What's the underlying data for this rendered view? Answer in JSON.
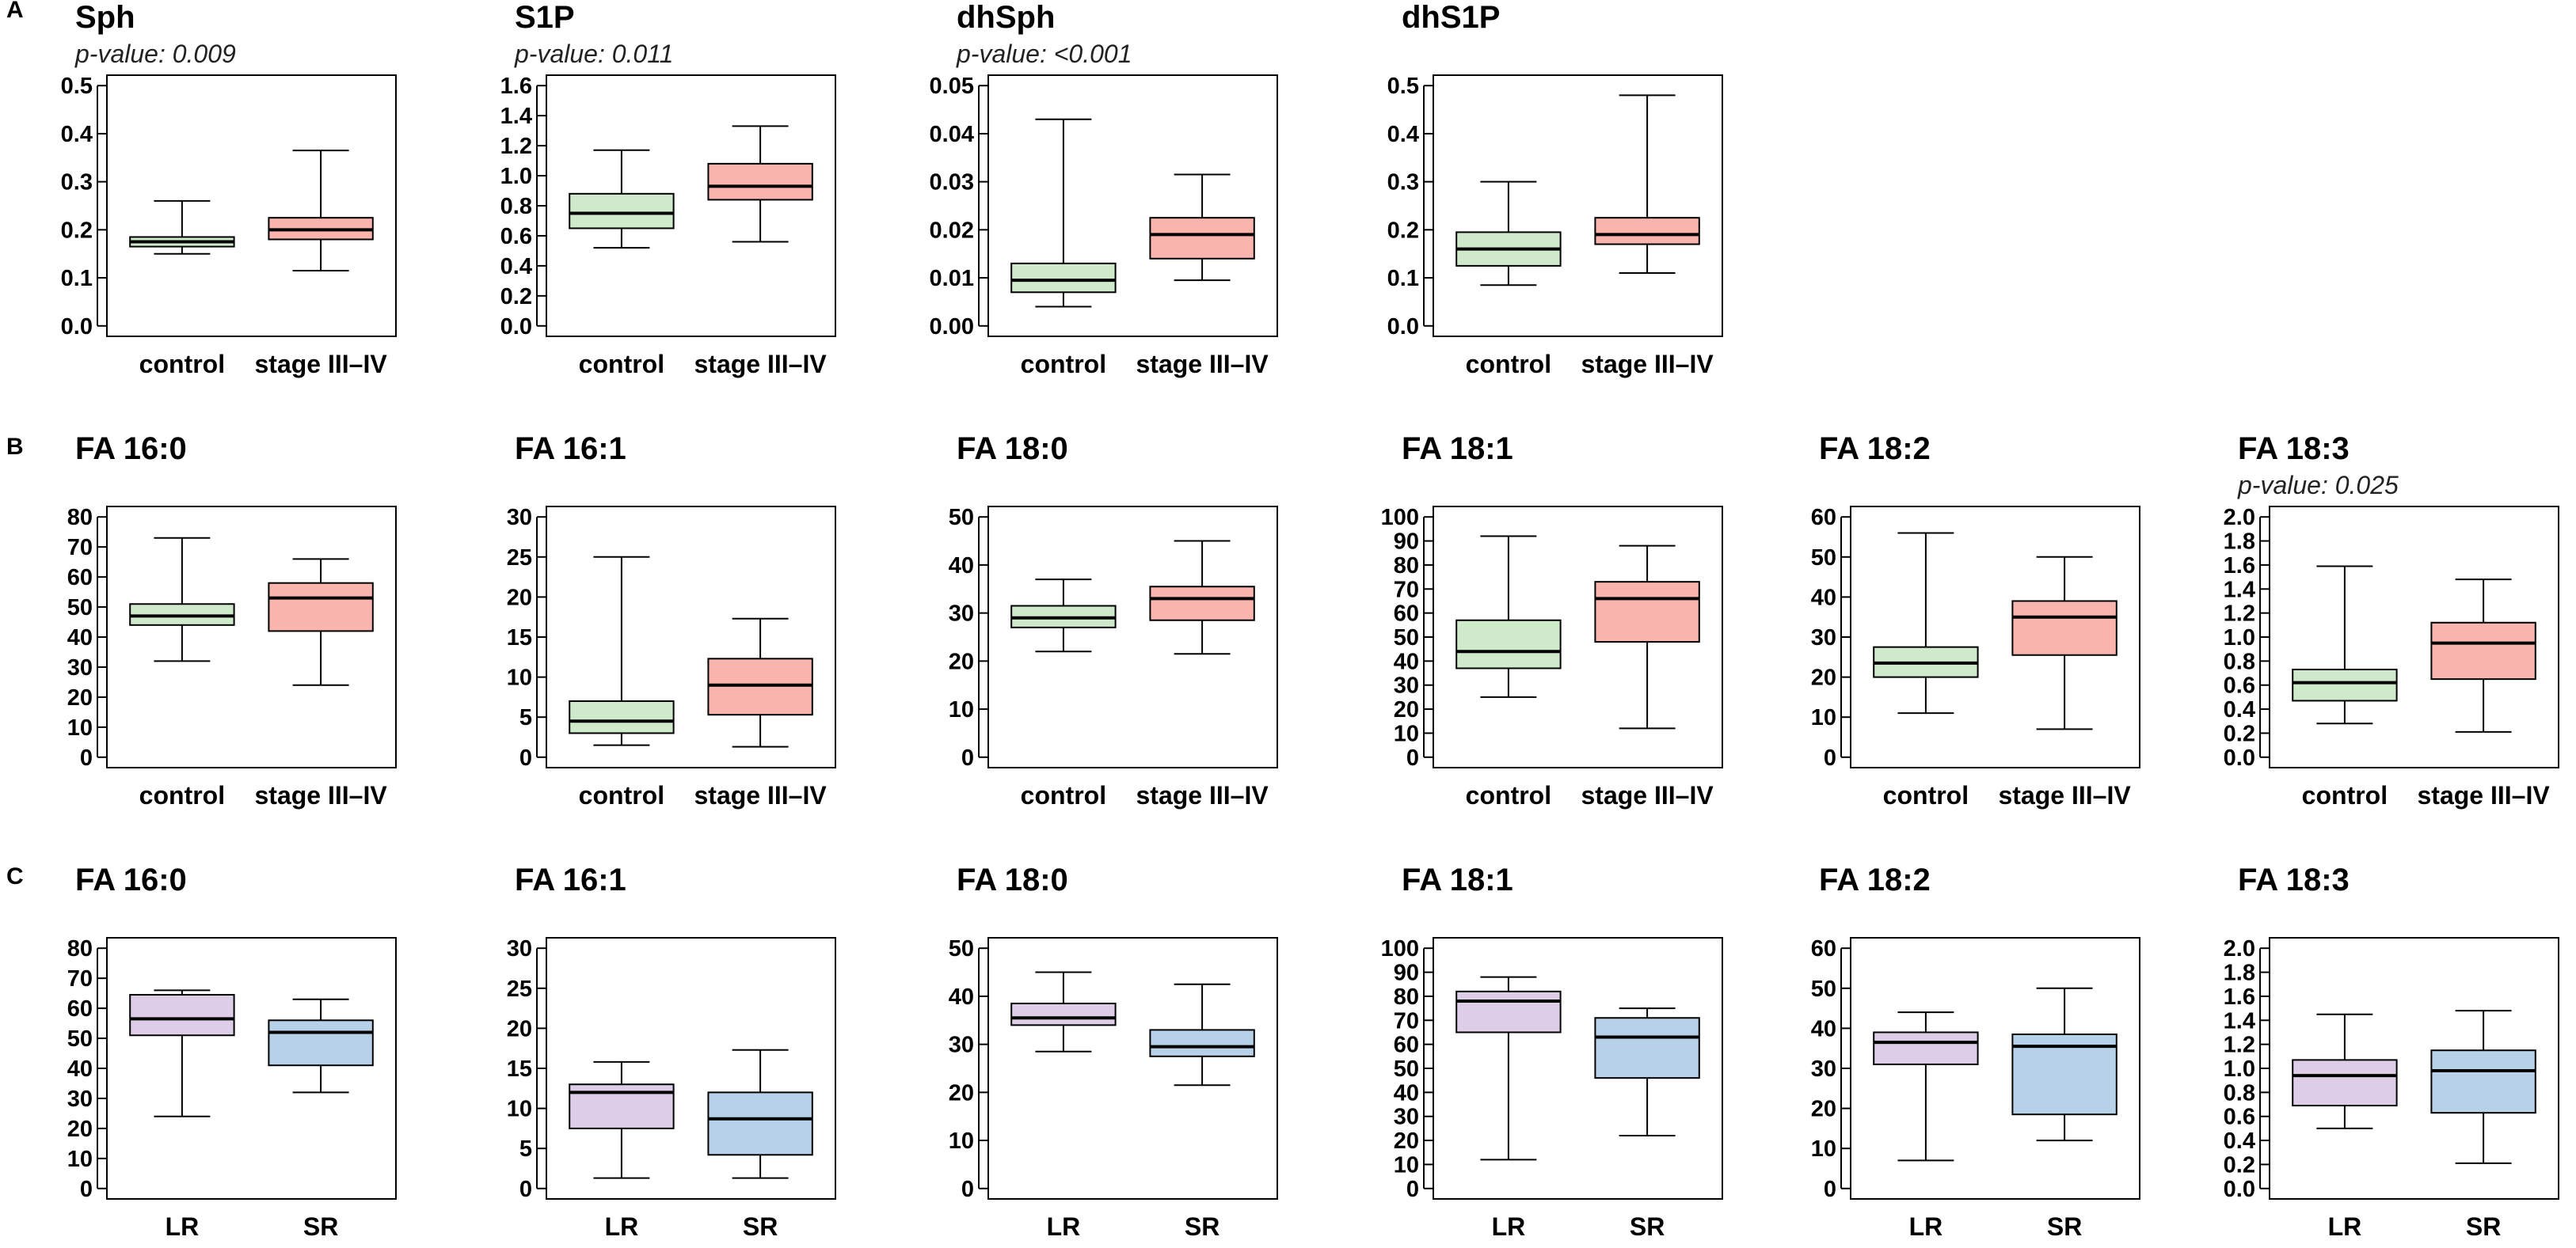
{
  "panel_labels": [
    "A",
    "B",
    "C"
  ],
  "colors": {
    "control": "#cfeacb",
    "stage": "#f9b4ad",
    "lr": "#ddcde7",
    "sr": "#b7d1e8",
    "stroke": "#000000"
  },
  "chart_data": [
    {
      "panel": "A",
      "type": "box",
      "title": "Sph",
      "subtitle": "p-value: 0.009",
      "categories": [
        "control",
        "stage III–IV"
      ],
      "yticks": [
        "0.0",
        "0.1",
        "0.2",
        "0.3",
        "0.4",
        "0.5"
      ],
      "ylim": [
        0,
        0.5
      ],
      "boxes": [
        {
          "min": 0.15,
          "q1": 0.165,
          "median": 0.175,
          "q3": 0.185,
          "max": 0.26,
          "color": "control"
        },
        {
          "min": 0.115,
          "q1": 0.18,
          "median": 0.2,
          "q3": 0.225,
          "max": 0.365,
          "color": "stage"
        }
      ]
    },
    {
      "panel": "A",
      "type": "box",
      "title": "S1P",
      "subtitle": "p-value: 0.011",
      "categories": [
        "control",
        "stage III–IV"
      ],
      "yticks": [
        "0.0",
        "0.2",
        "0.4",
        "0.6",
        "0.8",
        "1.0",
        "1.2",
        "1.4",
        "1.6"
      ],
      "ylim": [
        0,
        1.6
      ],
      "boxes": [
        {
          "min": 0.52,
          "q1": 0.65,
          "median": 0.75,
          "q3": 0.88,
          "max": 1.17,
          "color": "control"
        },
        {
          "min": 0.56,
          "q1": 0.84,
          "median": 0.93,
          "q3": 1.08,
          "max": 1.33,
          "color": "stage"
        }
      ]
    },
    {
      "panel": "A",
      "type": "box",
      "title": "dhSph",
      "subtitle": "p-value: <0.001",
      "categories": [
        "control",
        "stage III–IV"
      ],
      "yticks": [
        "0.00",
        "0.01",
        "0.02",
        "0.03",
        "0.04",
        "0.05"
      ],
      "ylim": [
        0,
        0.05
      ],
      "boxes": [
        {
          "min": 0.004,
          "q1": 0.007,
          "median": 0.0095,
          "q3": 0.013,
          "max": 0.043,
          "color": "control"
        },
        {
          "min": 0.0095,
          "q1": 0.014,
          "median": 0.019,
          "q3": 0.0225,
          "max": 0.0315,
          "color": "stage"
        }
      ]
    },
    {
      "panel": "A",
      "type": "box",
      "title": "dhS1P",
      "subtitle": "",
      "categories": [
        "control",
        "stage III–IV"
      ],
      "yticks": [
        "0.0",
        "0.1",
        "0.2",
        "0.3",
        "0.4",
        "0.5"
      ],
      "ylim": [
        0,
        0.5
      ],
      "boxes": [
        {
          "min": 0.085,
          "q1": 0.125,
          "median": 0.16,
          "q3": 0.195,
          "max": 0.3,
          "color": "control"
        },
        {
          "min": 0.11,
          "q1": 0.17,
          "median": 0.19,
          "q3": 0.225,
          "max": 0.48,
          "color": "stage"
        }
      ]
    },
    {
      "panel": "B",
      "type": "box",
      "title": "FA 16:0",
      "subtitle": "",
      "categories": [
        "control",
        "stage III–IV"
      ],
      "yticks": [
        "0",
        "10",
        "20",
        "30",
        "40",
        "50",
        "60",
        "70",
        "80"
      ],
      "ylim": [
        0,
        80
      ],
      "boxes": [
        {
          "min": 32,
          "q1": 44,
          "median": 47,
          "q3": 51,
          "max": 73,
          "color": "control"
        },
        {
          "min": 24,
          "q1": 42,
          "median": 53,
          "q3": 58,
          "max": 66,
          "color": "stage"
        }
      ]
    },
    {
      "panel": "B",
      "type": "box",
      "title": "FA 16:1",
      "subtitle": "",
      "categories": [
        "control",
        "stage III–IV"
      ],
      "yticks": [
        "0",
        "5",
        "10",
        "15",
        "20",
        "25",
        "30"
      ],
      "ylim": [
        0,
        30
      ],
      "boxes": [
        {
          "min": 1.5,
          "q1": 3,
          "median": 4.5,
          "q3": 7,
          "max": 25,
          "color": "control"
        },
        {
          "min": 1.3,
          "q1": 5.3,
          "median": 9,
          "q3": 12.3,
          "max": 17.3,
          "color": "stage"
        }
      ]
    },
    {
      "panel": "B",
      "type": "box",
      "title": "FA 18:0",
      "subtitle": "",
      "categories": [
        "control",
        "stage III–IV"
      ],
      "yticks": [
        "0",
        "10",
        "20",
        "30",
        "40",
        "50"
      ],
      "ylim": [
        0,
        50
      ],
      "boxes": [
        {
          "min": 22,
          "q1": 27,
          "median": 29,
          "q3": 31.5,
          "max": 37,
          "color": "control"
        },
        {
          "min": 21.5,
          "q1": 28.5,
          "median": 33,
          "q3": 35.5,
          "max": 45,
          "color": "stage"
        }
      ]
    },
    {
      "panel": "B",
      "type": "box",
      "title": "FA 18:1",
      "subtitle": "",
      "categories": [
        "control",
        "stage III–IV"
      ],
      "yticks": [
        "0",
        "10",
        "20",
        "30",
        "40",
        "50",
        "60",
        "70",
        "80",
        "90",
        "100"
      ],
      "ylim": [
        0,
        100
      ],
      "boxes": [
        {
          "min": 25,
          "q1": 37,
          "median": 44,
          "q3": 57,
          "max": 92,
          "color": "control"
        },
        {
          "min": 12,
          "q1": 48,
          "median": 66,
          "q3": 73,
          "max": 88,
          "color": "stage"
        }
      ]
    },
    {
      "panel": "B",
      "type": "box",
      "title": "FA 18:2",
      "subtitle": "",
      "categories": [
        "control",
        "stage III–IV"
      ],
      "yticks": [
        "0",
        "10",
        "20",
        "30",
        "40",
        "50",
        "60"
      ],
      "ylim": [
        0,
        60
      ],
      "boxes": [
        {
          "min": 11,
          "q1": 20,
          "median": 23.5,
          "q3": 27.5,
          "max": 56,
          "color": "control"
        },
        {
          "min": 7,
          "q1": 25.5,
          "median": 35,
          "q3": 39,
          "max": 50,
          "color": "stage"
        }
      ]
    },
    {
      "panel": "B",
      "type": "box",
      "title": "FA 18:3",
      "subtitle": "p-value: 0.025",
      "categories": [
        "control",
        "stage III–IV"
      ],
      "yticks": [
        "0.0",
        "0.2",
        "0.4",
        "0.6",
        "0.8",
        "1.0",
        "1.2",
        "1.4",
        "1.6",
        "1.8",
        "2.0"
      ],
      "ylim": [
        0,
        2
      ],
      "boxes": [
        {
          "min": 0.28,
          "q1": 0.47,
          "median": 0.62,
          "q3": 0.73,
          "max": 1.59,
          "color": "control"
        },
        {
          "min": 0.21,
          "q1": 0.65,
          "median": 0.95,
          "q3": 1.12,
          "max": 1.48,
          "color": "stage"
        }
      ]
    },
    {
      "panel": "C",
      "type": "box",
      "title": "FA 16:0",
      "subtitle": "",
      "categories": [
        "LR",
        "SR"
      ],
      "yticks": [
        "0",
        "10",
        "20",
        "30",
        "40",
        "50",
        "60",
        "70",
        "80"
      ],
      "ylim": [
        0,
        80
      ],
      "boxes": [
        {
          "min": 24,
          "q1": 51,
          "median": 56.5,
          "q3": 64.5,
          "max": 66,
          "color": "lr"
        },
        {
          "min": 32,
          "q1": 41,
          "median": 52,
          "q3": 56,
          "max": 63,
          "color": "sr"
        }
      ]
    },
    {
      "panel": "C",
      "type": "box",
      "title": "FA 16:1",
      "subtitle": "",
      "categories": [
        "LR",
        "SR"
      ],
      "yticks": [
        "0",
        "5",
        "10",
        "15",
        "20",
        "25",
        "30"
      ],
      "ylim": [
        0,
        30
      ],
      "boxes": [
        {
          "min": 1.3,
          "q1": 7.5,
          "median": 12,
          "q3": 13,
          "max": 15.8,
          "color": "lr"
        },
        {
          "min": 1.3,
          "q1": 4.2,
          "median": 8.7,
          "q3": 12,
          "max": 17.3,
          "color": "sr"
        }
      ]
    },
    {
      "panel": "C",
      "type": "box",
      "title": "FA 18:0",
      "subtitle": "",
      "categories": [
        "LR",
        "SR"
      ],
      "yticks": [
        "0",
        "10",
        "20",
        "30",
        "40",
        "50"
      ],
      "ylim": [
        0,
        50
      ],
      "boxes": [
        {
          "min": 28.5,
          "q1": 34,
          "median": 35.5,
          "q3": 38.5,
          "max": 45,
          "color": "lr"
        },
        {
          "min": 21.5,
          "q1": 27.5,
          "median": 29.5,
          "q3": 33,
          "max": 42.5,
          "color": "sr"
        }
      ]
    },
    {
      "panel": "C",
      "type": "box",
      "title": "FA 18:1",
      "subtitle": "",
      "categories": [
        "LR",
        "SR"
      ],
      "yticks": [
        "0",
        "10",
        "20",
        "30",
        "40",
        "50",
        "60",
        "70",
        "80",
        "90",
        "100"
      ],
      "ylim": [
        0,
        100
      ],
      "boxes": [
        {
          "min": 12,
          "q1": 65,
          "median": 78,
          "q3": 82,
          "max": 88,
          "color": "lr"
        },
        {
          "min": 22,
          "q1": 46,
          "median": 63,
          "q3": 71,
          "max": 75,
          "color": "sr"
        }
      ]
    },
    {
      "panel": "C",
      "type": "box",
      "title": "FA 18:2",
      "subtitle": "",
      "categories": [
        "LR",
        "SR"
      ],
      "yticks": [
        "0",
        "10",
        "20",
        "30",
        "40",
        "50",
        "60"
      ],
      "ylim": [
        0,
        60
      ],
      "boxes": [
        {
          "min": 7,
          "q1": 31,
          "median": 36.5,
          "q3": 39,
          "max": 44,
          "color": "lr"
        },
        {
          "min": 12,
          "q1": 18.5,
          "median": 35.5,
          "q3": 38.5,
          "max": 50,
          "color": "sr"
        }
      ]
    },
    {
      "panel": "C",
      "type": "box",
      "title": "FA 18:3",
      "subtitle": "",
      "categories": [
        "LR",
        "SR"
      ],
      "yticks": [
        "0.0",
        "0.2",
        "0.4",
        "0.6",
        "0.8",
        "1.0",
        "1.2",
        "1.4",
        "1.6",
        "1.8",
        "2.0"
      ],
      "ylim": [
        0,
        2
      ],
      "boxes": [
        {
          "min": 0.5,
          "q1": 0.69,
          "median": 0.94,
          "q3": 1.07,
          "max": 1.45,
          "color": "lr"
        },
        {
          "min": 0.21,
          "q1": 0.63,
          "median": 0.98,
          "q3": 1.15,
          "max": 1.48,
          "color": "sr"
        }
      ]
    }
  ]
}
